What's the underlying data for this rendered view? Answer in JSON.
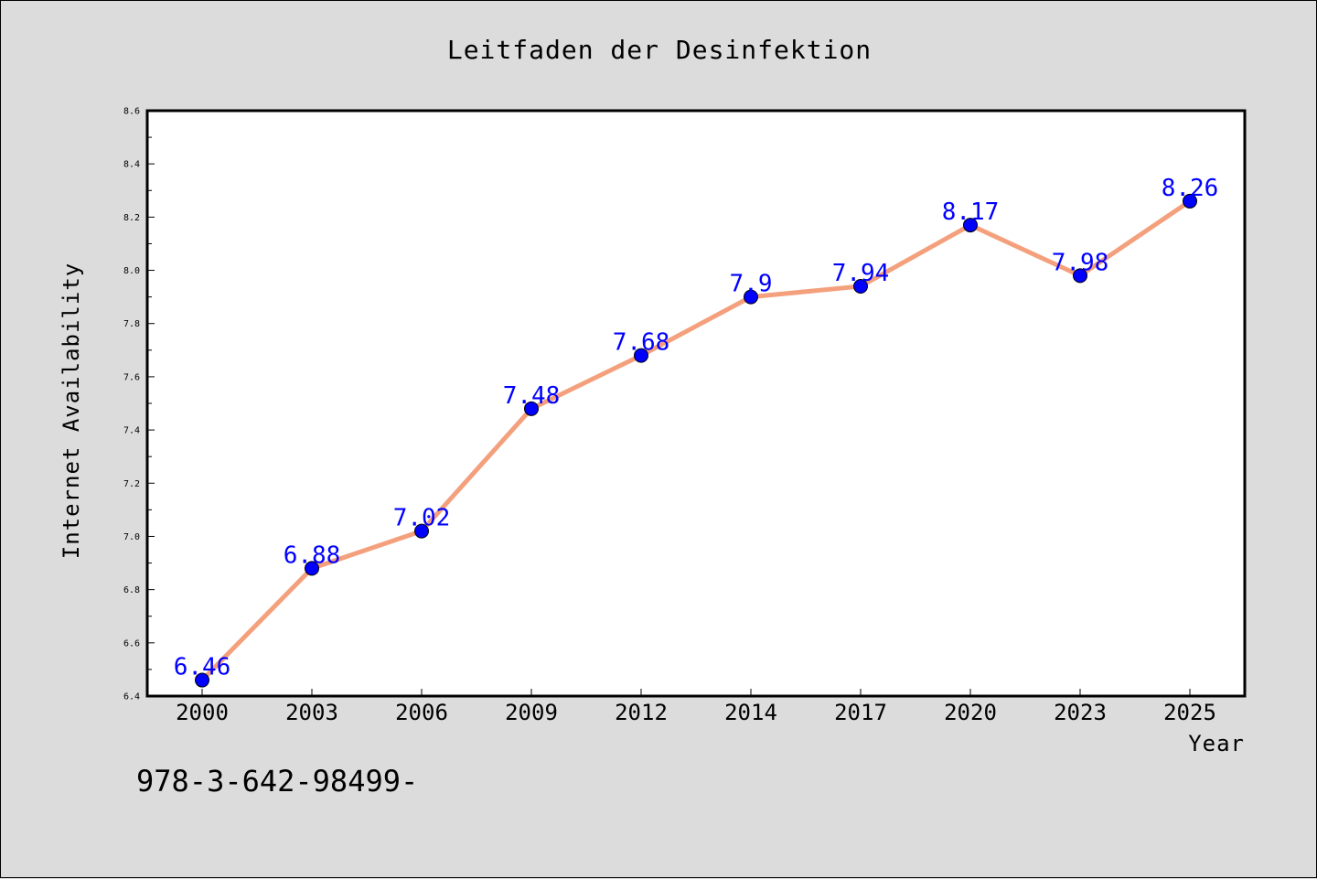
{
  "chart_data": {
    "type": "line",
    "title": "Leitfaden der Desinfektion",
    "xlabel": "Year",
    "ylabel": "Internet Availability",
    "categories": [
      "2000",
      "2003",
      "2006",
      "2009",
      "2012",
      "2014",
      "2017",
      "2020",
      "2023",
      "2025"
    ],
    "series": [
      {
        "values": [
          6.46,
          6.88,
          7.02,
          7.48,
          7.68,
          7.9,
          7.94,
          8.17,
          7.98,
          8.26
        ],
        "data_labels": [
          "6.46",
          "6.88",
          "7.02",
          "7.48",
          "7.68",
          "7.9",
          "7.94",
          "8.17",
          "7.98",
          "8.26"
        ],
        "line_color": "#f4a07c",
        "marker_color": "#0000ff",
        "label_color": "#0000ff"
      }
    ],
    "ylim": [
      6.4,
      8.6
    ],
    "yticks": [
      "6.4",
      "6.6",
      "6.8",
      "7.0",
      "7.2",
      "7.4",
      "7.6",
      "7.8",
      "8.0",
      "8.2",
      "8.4",
      "8.6"
    ],
    "grid": false,
    "legend": "none"
  },
  "footer": {
    "text": "978-3-642-98499-"
  },
  "colors": {
    "background": "#dcdcdc",
    "plot_background": "#ffffff"
  }
}
